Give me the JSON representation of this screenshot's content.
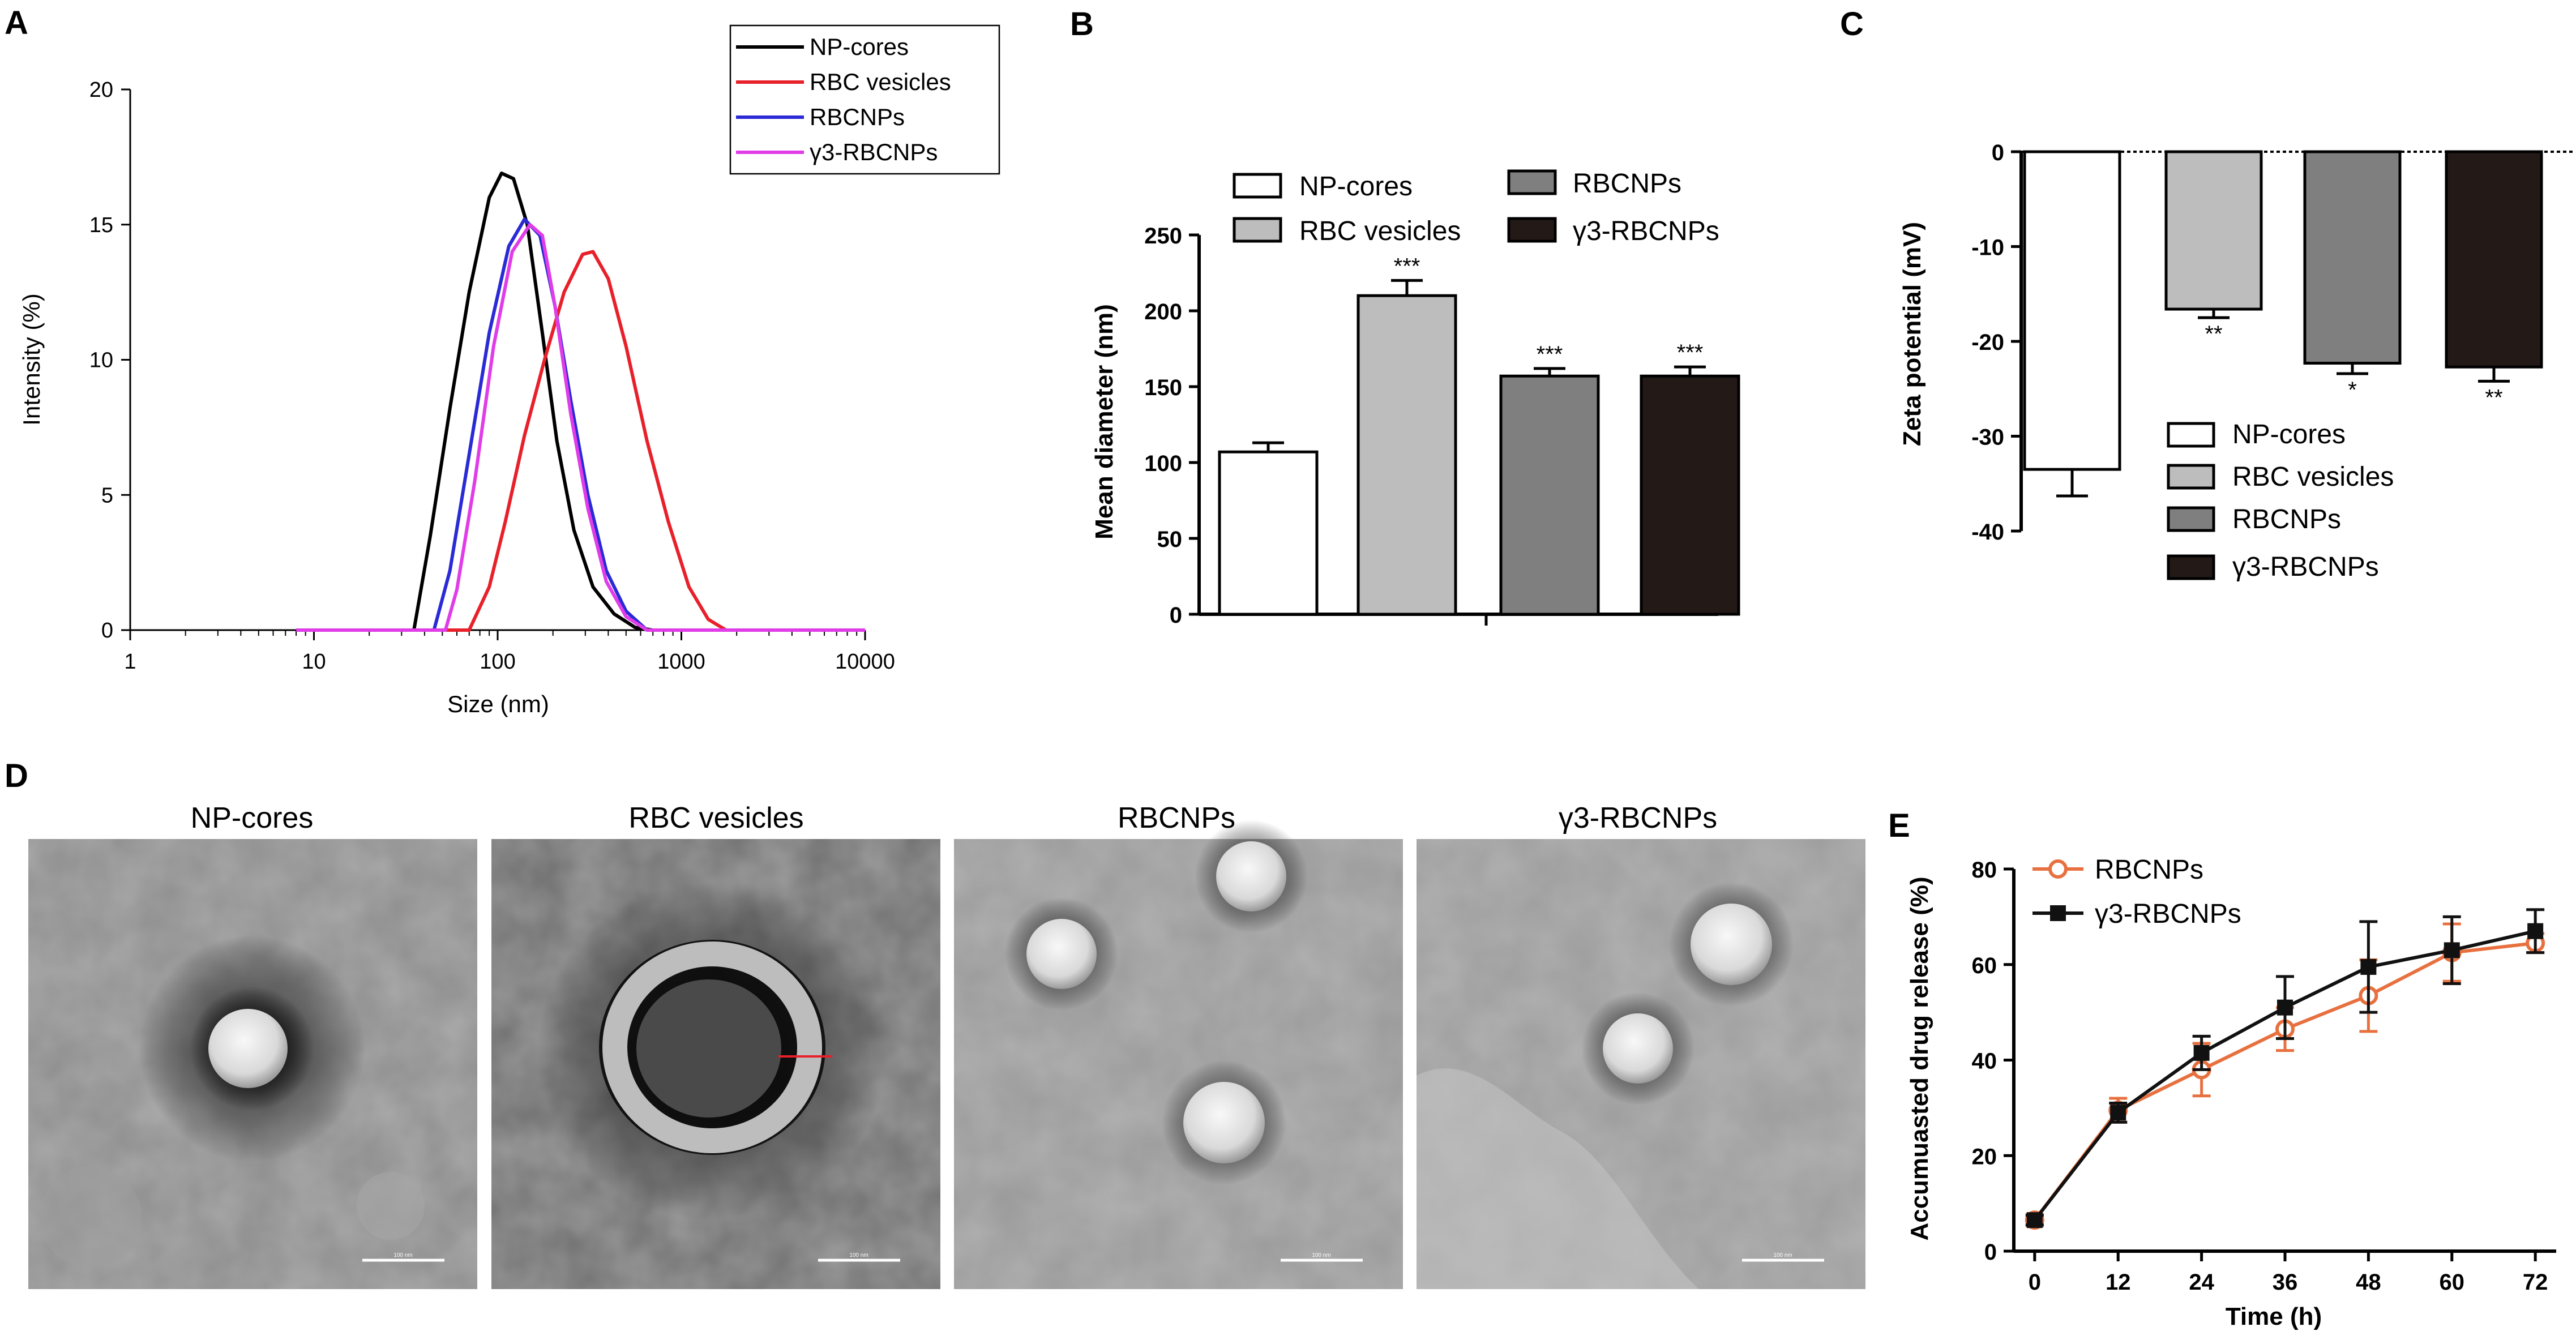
{
  "panel_labels": [
    "A",
    "B",
    "C",
    "D",
    "E"
  ],
  "colors": {
    "np_cores": "#000000",
    "rbc_vesicles": "#e8202a",
    "rbcnps": "#2a2ad6",
    "g3_rbcnps": "#e03ce8",
    "bar_np": "#ffffff",
    "bar_rbc": "#bdbdbd",
    "bar_rbcnps": "#7f7f7f",
    "bar_g3": "#231a18",
    "line_rbcnps": "#e8703f",
    "line_g3": "#111111"
  },
  "chart_data": [
    {
      "panel": "A",
      "type": "line",
      "xscale": "log",
      "xlabel": "Size (nm)",
      "ylabel": "Intensity (%)",
      "xlim": [
        1,
        10000
      ],
      "ylim": [
        0,
        20
      ],
      "x_ticks": [
        "1",
        "10",
        "100",
        "1000",
        "10000"
      ],
      "y_ticks": [
        "0",
        "5",
        "10",
        "15",
        "20"
      ],
      "legend": [
        "NP-cores",
        "RBC vesicles",
        "RBCNPs",
        "γ3-RBCNPs"
      ],
      "series": [
        {
          "name": "NP-cores",
          "x": [
            8,
            35,
            43,
            55,
            70,
            90,
            105,
            122,
            145,
            175,
            210,
            260,
            330,
            430,
            560,
            700,
            10000
          ],
          "y": [
            0,
            0,
            3.5,
            8.2,
            12.5,
            16.0,
            16.9,
            16.7,
            15.0,
            11.0,
            7.0,
            3.7,
            1.6,
            0.6,
            0.1,
            0,
            0
          ]
        },
        {
          "name": "RBC vesicles",
          "x": [
            8,
            70,
            90,
            110,
            140,
            180,
            230,
            290,
            330,
            400,
            500,
            650,
            850,
            1100,
            1400,
            1750,
            10000
          ],
          "y": [
            0,
            0,
            1.6,
            4.0,
            7.2,
            10.0,
            12.5,
            13.9,
            14.0,
            13.0,
            10.5,
            7.0,
            4.0,
            1.6,
            0.4,
            0,
            0
          ]
        },
        {
          "name": "RBCNPs",
          "x": [
            8,
            45,
            55,
            70,
            90,
            115,
            140,
            170,
            205,
            250,
            310,
            390,
            500,
            650,
            10000
          ],
          "y": [
            0,
            0,
            2.2,
            6.5,
            11.0,
            14.2,
            15.2,
            14.6,
            12.0,
            8.5,
            5.0,
            2.2,
            0.7,
            0,
            0
          ]
        },
        {
          "name": "γ3-RBCNPs",
          "x": [
            8,
            52,
            60,
            75,
            95,
            120,
            150,
            175,
            205,
            250,
            310,
            390,
            500,
            650,
            10000
          ],
          "y": [
            0,
            0,
            1.5,
            5.5,
            10.5,
            14.0,
            15.0,
            14.6,
            12.0,
            8.0,
            4.5,
            1.8,
            0.5,
            0,
            0
          ]
        }
      ]
    },
    {
      "panel": "B",
      "type": "bar",
      "ylabel": "Mean diameter (nm)",
      "ylim": [
        0,
        250
      ],
      "y_ticks": [
        "0",
        "50",
        "100",
        "150",
        "200",
        "250"
      ],
      "categories": [
        "NP-cores",
        "RBC vesicles",
        "RBCNPs",
        "γ3-RBCNPs"
      ],
      "values": [
        107,
        210,
        157,
        157
      ],
      "errors": [
        6,
        10,
        5,
        6
      ],
      "significance": [
        "",
        "***",
        "***",
        "***"
      ]
    },
    {
      "panel": "C",
      "type": "bar",
      "ylabel": "Zeta potential (mV)",
      "ylim": [
        -40,
        0
      ],
      "y_ticks": [
        "-40",
        "-30",
        "-20",
        "-10",
        "0"
      ],
      "categories": [
        "NP-cores",
        "RBC vesicles",
        "RBCNPs",
        "γ3-RBCNPs"
      ],
      "values": [
        -33.5,
        -16.6,
        -22.3,
        -22.7
      ],
      "errors": [
        2.8,
        0.9,
        1.1,
        1.5
      ],
      "significance": [
        "",
        "**",
        "*",
        "**"
      ]
    },
    {
      "panel": "E",
      "type": "line",
      "xlabel": "Time (h)",
      "ylabel": "Accumuasted drug release (%)",
      "xlim": [
        -3,
        75
      ],
      "ylim": [
        0,
        80
      ],
      "x_ticks": [
        "0",
        "12",
        "24",
        "36",
        "48",
        "60",
        "72"
      ],
      "y_ticks": [
        "0",
        "20",
        "40",
        "60",
        "80"
      ],
      "legend": [
        "RBCNPs",
        "γ3-RBCNPs"
      ],
      "series": [
        {
          "name": "RBCNPs",
          "x": [
            0,
            12,
            24,
            36,
            48,
            60,
            72
          ],
          "y": [
            6.5,
            29.5,
            38,
            46.5,
            53.5,
            62.5,
            64.5
          ],
          "err": [
            1.2,
            2.5,
            5.5,
            4.5,
            7.5,
            6,
            2
          ]
        },
        {
          "name": "γ3-RBCNPs",
          "x": [
            0,
            12,
            24,
            36,
            48,
            60,
            72
          ],
          "y": [
            6.5,
            29,
            41.5,
            51,
            59.5,
            63,
            67
          ],
          "err": [
            1,
            2,
            3.5,
            6.5,
            9.5,
            7,
            4.5
          ]
        }
      ]
    }
  ],
  "tem": {
    "titles": [
      "NP-cores",
      "RBC vesicles",
      "RBCNPs",
      "γ3-RBCNPs"
    ],
    "scale_text": "100 nm"
  }
}
